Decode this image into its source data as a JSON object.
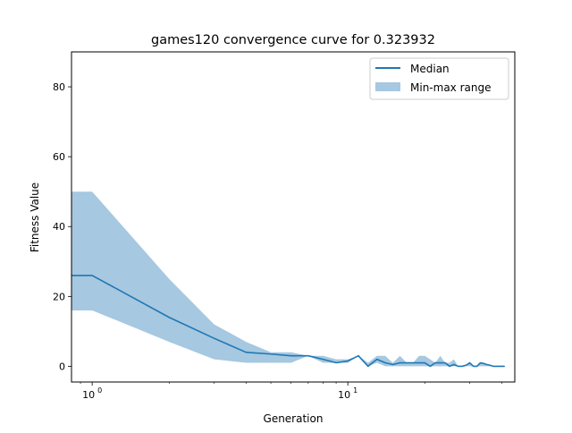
{
  "chart_data": {
    "type": "line",
    "title": "games120 convergence curve for 0.323932",
    "xlabel": "Generation",
    "ylabel": "Fitness Value",
    "xscale": "log",
    "xlim": [
      0.83,
      45
    ],
    "ylim": [
      -4.5,
      90
    ],
    "x_ticks": [
      {
        "value": 1,
        "base": "10",
        "exp": "0"
      },
      {
        "value": 10,
        "base": "10",
        "exp": "1"
      }
    ],
    "y_ticks": [
      0,
      20,
      40,
      60,
      80
    ],
    "grid": false,
    "legend_position": "top-right",
    "x": [
      0.83,
      1,
      2,
      3,
      4,
      5,
      6,
      7,
      8,
      9,
      10,
      11,
      12,
      13,
      14,
      15,
      16,
      17,
      18,
      19,
      20,
      21,
      22,
      23,
      24,
      25,
      26,
      27,
      28,
      29,
      30,
      31,
      32,
      33,
      34,
      35,
      36,
      37,
      38,
      39,
      40,
      41
    ],
    "series": [
      {
        "name": "Median",
        "kind": "line",
        "color": "#1f77b4",
        "values": [
          26,
          26,
          14,
          8,
          4,
          3.5,
          3,
          3,
          2,
          1,
          1.5,
          3,
          0,
          2,
          1,
          0.5,
          1,
          1,
          1,
          1,
          1,
          0,
          1,
          1,
          1,
          0,
          0.5,
          0,
          0,
          0.3,
          1,
          0,
          0,
          1,
          0.8,
          0.5,
          0.3,
          0,
          0,
          0,
          0,
          0
        ]
      },
      {
        "name": "Min-max range",
        "kind": "band",
        "color": "#a6c8e1",
        "lower": [
          16,
          16,
          7,
          2,
          1,
          1,
          1,
          3,
          1,
          1,
          1,
          3,
          0,
          1,
          0,
          0,
          0,
          0,
          0,
          0,
          0,
          0,
          0,
          0,
          0,
          0,
          0,
          0,
          0,
          0,
          0,
          0,
          0,
          0,
          0,
          0,
          0,
          0,
          0,
          0,
          0,
          0
        ],
        "upper": [
          50,
          50,
          25,
          12,
          7,
          4,
          4,
          3,
          3,
          2,
          2,
          3,
          1,
          3,
          3,
          1,
          3,
          1,
          1,
          3,
          3,
          2,
          1,
          3,
          1,
          1,
          2,
          0,
          0,
          0.5,
          1,
          0,
          0,
          1,
          1,
          0.5,
          0.5,
          0,
          0,
          0,
          0,
          0
        ]
      }
    ]
  }
}
